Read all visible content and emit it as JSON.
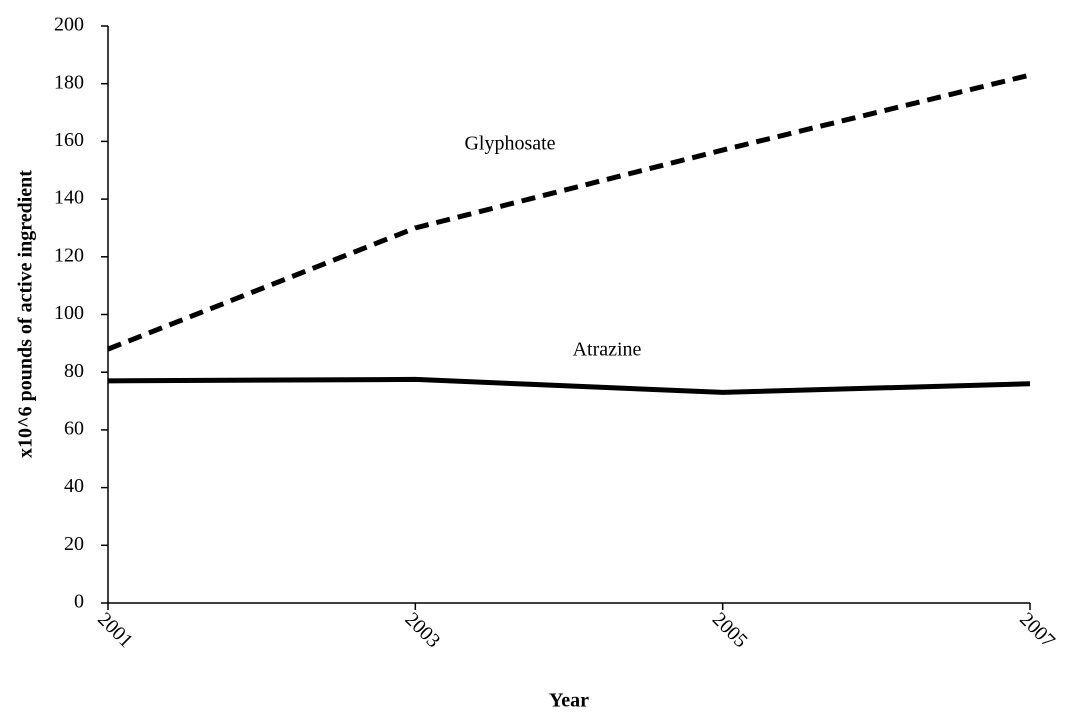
{
  "chart_data": {
    "type": "line",
    "x_label": "Year",
    "y_label": "x10^6 pounds of active ingredient",
    "categories": [
      "2001",
      "2003",
      "2005",
      "2007"
    ],
    "series": [
      {
        "name": "Glyphosate",
        "color": "#000000",
        "style": "dashed",
        "values": [
          88,
          130,
          157,
          183
        ]
      },
      {
        "name": "Atrazine",
        "color": "#000000",
        "style": "solid",
        "values": [
          77,
          77.5,
          73,
          76
        ]
      }
    ],
    "ylim": [
      0,
      200
    ],
    "yticks": [
      0,
      20,
      40,
      60,
      80,
      100,
      120,
      140,
      160,
      180,
      200
    ]
  }
}
